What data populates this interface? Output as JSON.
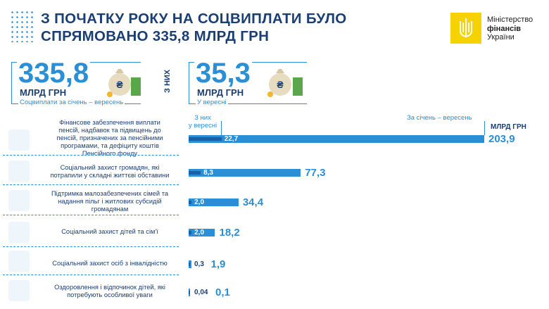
{
  "header": {
    "title_line1": "З ПОЧАТКУ РОКУ НА СОЦВИПЛАТИ БУЛО",
    "title_line2": "СПРЯМОВАНО 335,8 МЛРД ГРН"
  },
  "logo": {
    "line1": "Міністерство",
    "line2": "фінансів",
    "line3": "України"
  },
  "summary": {
    "total": {
      "value": "335,8",
      "unit": "МЛРД ГРН",
      "caption": "Соцвиплати за січень – вересень"
    },
    "side_label": "З НИХ",
    "september": {
      "value": "35,3",
      "unit": "МЛРД ГРН",
      "caption": "У вересні"
    }
  },
  "chart_data": {
    "type": "bar",
    "unit_label": "МЛРД ГРН",
    "series": [
      {
        "name": "З них у вересні",
        "values": [
          22.7,
          8.3,
          2.0,
          2.0,
          0.3,
          0.04
        ]
      },
      {
        "name": "За січень – вересень",
        "values": [
          203.9,
          77.3,
          34.4,
          18.2,
          1.9,
          0.1
        ]
      }
    ],
    "categories": [
      "Фінансове забезпечення виплати пенсій, надбавок та підвищень до пенсій, призначених за пенсійними програмами, та дефіциту коштів Пенсійного фонду",
      "Соціальний захист громадян, які потрапили у складні життєві обставини",
      "Підтримка малозабезпечених сімей та надання пільг і житлових субсидій громадянам",
      "Соціальний захист дітей та сім'ї",
      "Соціальний захист осіб з інвалідністю",
      "Оздоровлення і відпочинок дітей, які потребують особливої уваги"
    ],
    "category_lines": [
      [
        "Фінансове забезпечення виплати",
        "пенсій, надбавок та підвищень до",
        "пенсій, призначених за пенсійними",
        "програмами, та дефіциту коштів",
        "Пенсійного фонду"
      ],
      [
        "Соціальний захист громадян, які",
        "потрапили у складні життєві обставини"
      ],
      [
        "Підтримка малозабезпечених сімей та",
        "надання пільг і житлових субсидій",
        "громадянам"
      ],
      [
        "Соціальний захист дітей та сім'ї"
      ],
      [
        "Соціальний захист осіб з інвалідністю"
      ],
      [
        "Оздоровлення і відпочинок дітей, які",
        "потребують особливої уваги"
      ]
    ],
    "september_labels": [
      "22,7",
      "8,3",
      "2,0",
      "2,0",
      "0,3",
      "0,04"
    ],
    "total_labels": [
      "203,9",
      "77,3",
      "34,4",
      "18,2",
      "1,9",
      "0,1"
    ],
    "colors": {
      "total": "#2a8fd6",
      "september": "#1b5fa8",
      "text": "#1b3f73"
    },
    "header_sep_lines": [
      "З них",
      "у вересні"
    ],
    "header_total": "За січень – вересень"
  }
}
